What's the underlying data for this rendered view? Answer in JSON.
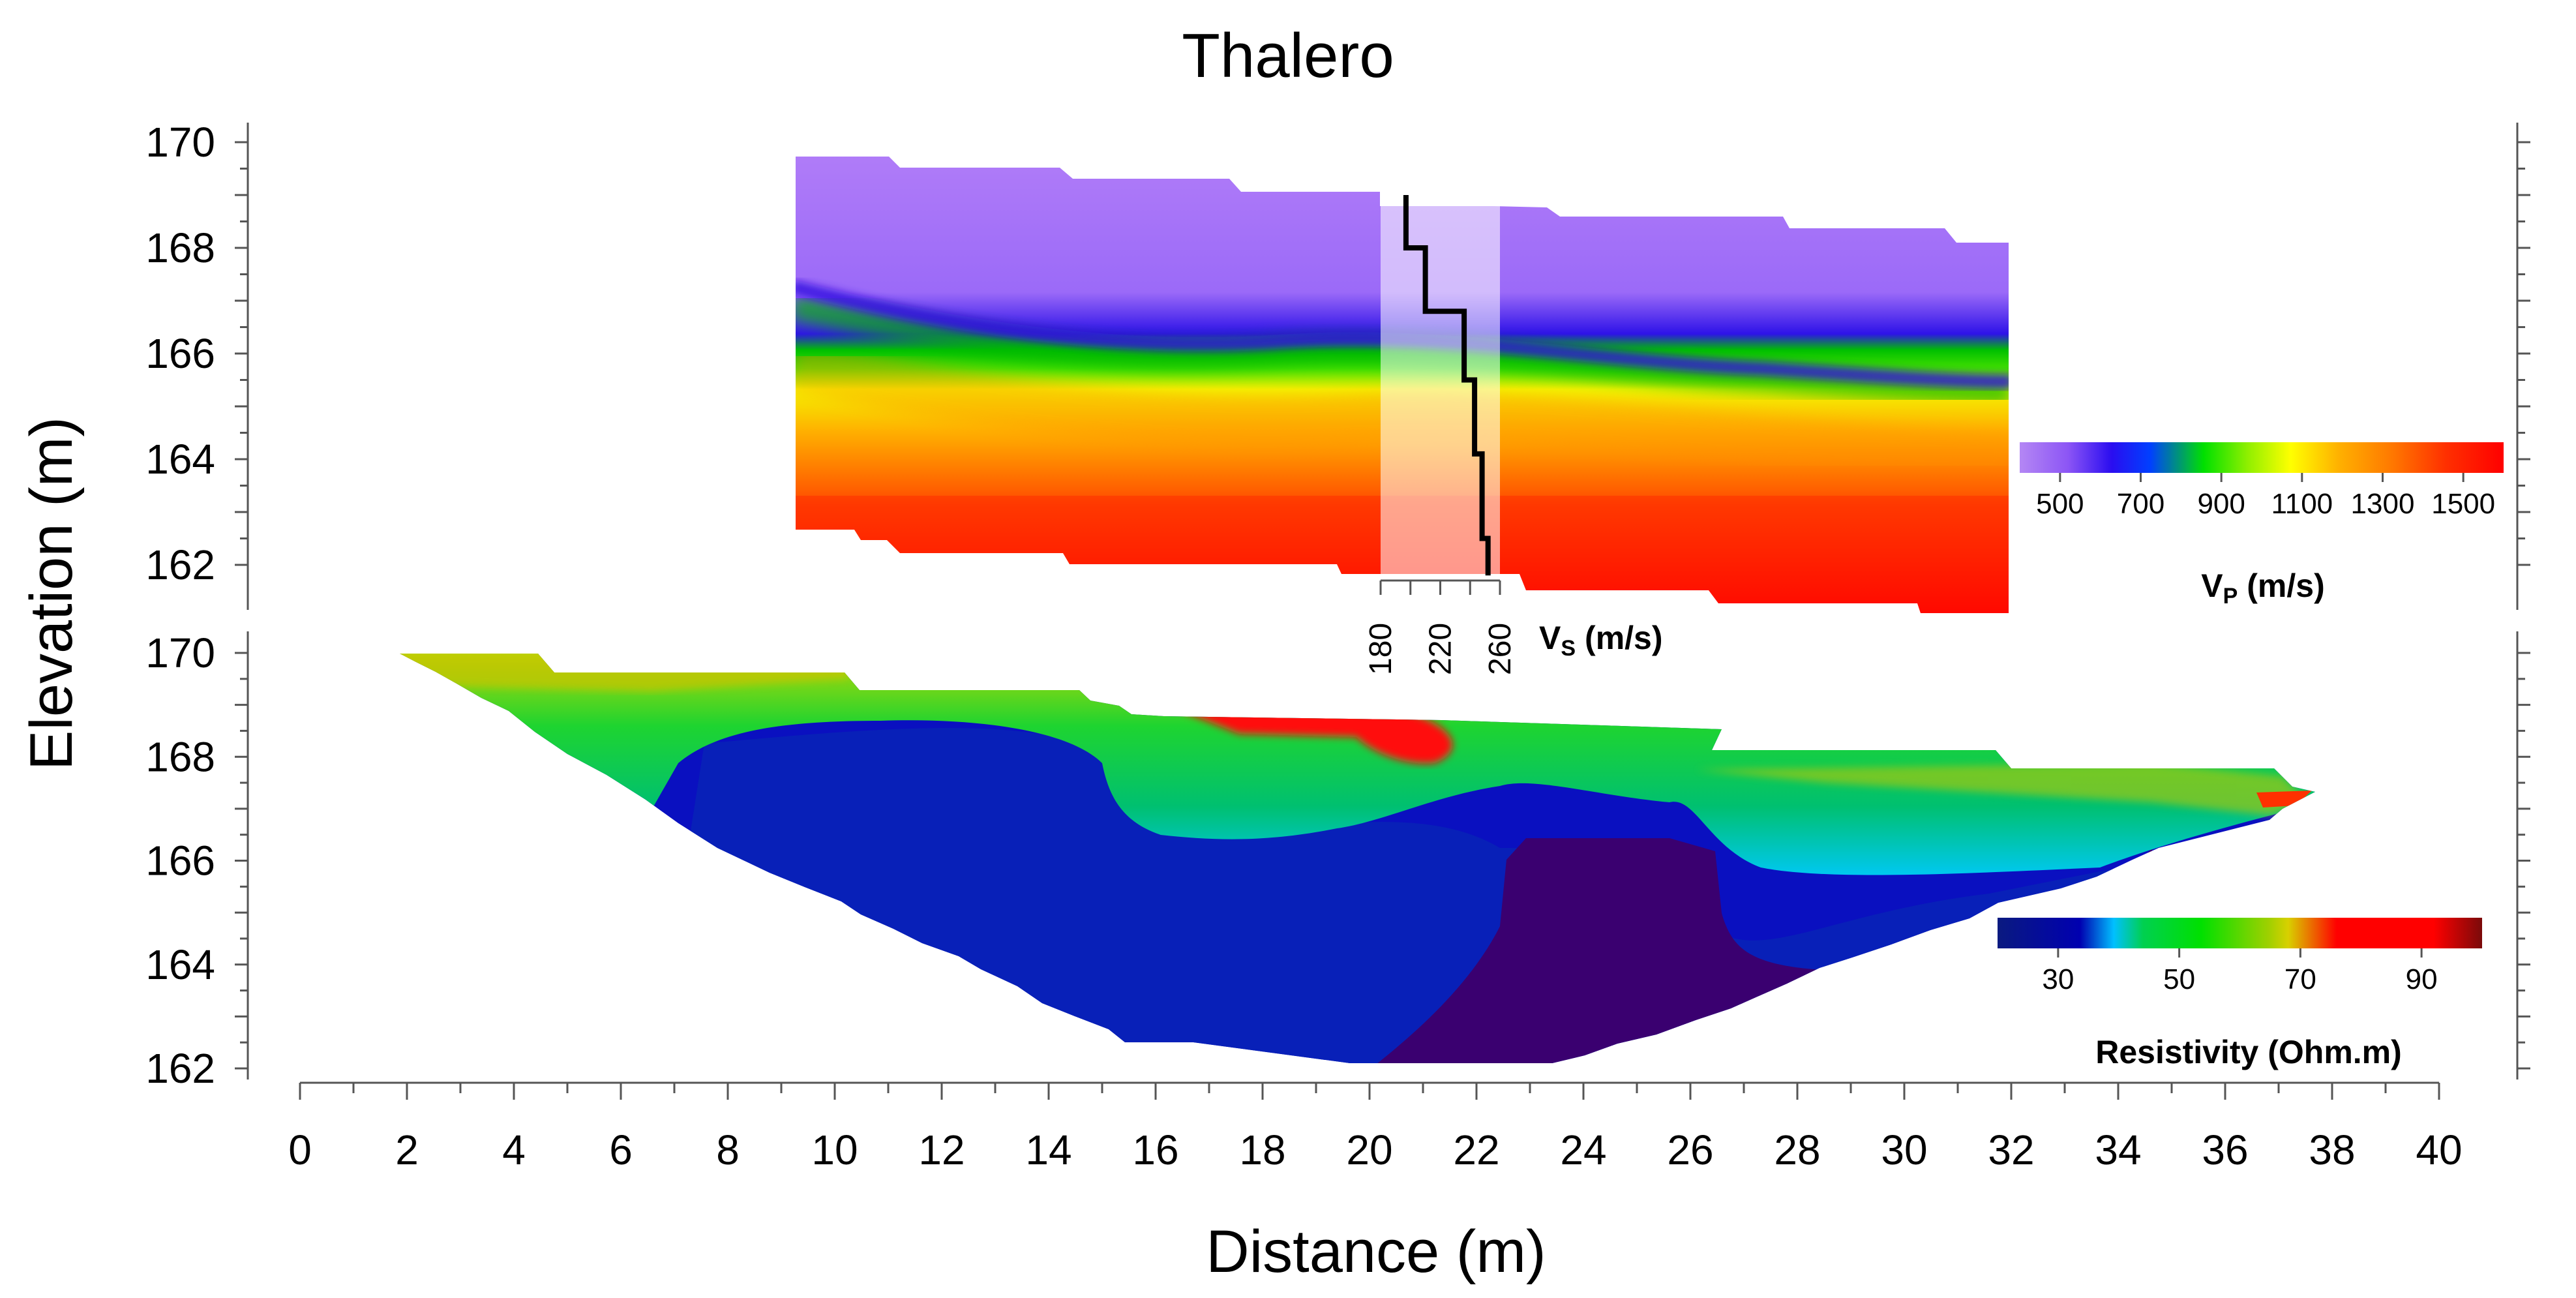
{
  "chart_data": {
    "type": "heatmap",
    "title": "Thalero",
    "xlabel": "Distance (m)",
    "ylabel": "Elevation (m)",
    "xlim": [
      0,
      40
    ],
    "x_ticks": [
      "0",
      "2",
      "4",
      "6",
      "8",
      "10",
      "12",
      "14",
      "16",
      "18",
      "20",
      "22",
      "24",
      "26",
      "28",
      "30",
      "32",
      "34",
      "36",
      "38",
      "40"
    ],
    "panels": [
      {
        "name": "seismic-refraction-vp",
        "ylim": [
          161.5,
          170.4
        ],
        "y_ticks": [
          "170",
          "168",
          "166",
          "164",
          "162"
        ],
        "colorbar": {
          "label_main": "V",
          "label_sub": "P",
          "label_unit": "(m/s)",
          "range": [
            400,
            1600
          ],
          "ticks": [
            "500",
            "700",
            "900",
            "1100",
            "1300",
            "1500"
          ],
          "colors": [
            "#b487f4",
            "#8c55f5",
            "#2a0df0",
            "#0040ff",
            "#00e000",
            "#8eef00",
            "#ffff00",
            "#ffb000",
            "#ff7800",
            "#ff3000",
            "#ff0000"
          ]
        },
        "vs_profile": {
          "label_main": "V",
          "label_sub": "S",
          "label_unit": "(m/s)",
          "x_position_m": [
            20.2,
            22.4
          ],
          "range": [
            180,
            260
          ],
          "ticks": [
            "180",
            "220",
            "260"
          ],
          "steps": [
            {
              "elev": 169.0,
              "vs": 197
            },
            {
              "elev": 168.0,
              "vs": 197
            },
            {
              "elev": 168.0,
              "vs": 210
            },
            {
              "elev": 166.8,
              "vs": 210
            },
            {
              "elev": 166.8,
              "vs": 236
            },
            {
              "elev": 165.5,
              "vs": 236
            },
            {
              "elev": 165.5,
              "vs": 243
            },
            {
              "elev": 164.1,
              "vs": 243
            },
            {
              "elev": 164.1,
              "vs": 248
            },
            {
              "elev": 162.5,
              "vs": 248
            },
            {
              "elev": 162.5,
              "vs": 252
            },
            {
              "elev": 161.8,
              "vs": 252
            }
          ]
        }
      },
      {
        "name": "electrical-resistivity",
        "ylim": [
          161.5,
          170.4
        ],
        "y_ticks": [
          "170",
          "168",
          "166",
          "164",
          "162"
        ],
        "colorbar": {
          "label": "Resistivity (Ohm.m)",
          "range": [
            20,
            100
          ],
          "ticks": [
            "30",
            "50",
            "70",
            "90"
          ],
          "colors": [
            "#0a1a80",
            "#0000b0",
            "#00c0ff",
            "#00d050",
            "#00e000",
            "#a0d000",
            "#d8d000",
            "#ff0000",
            "#ff0000",
            "#7a0a0a"
          ]
        }
      }
    ]
  }
}
